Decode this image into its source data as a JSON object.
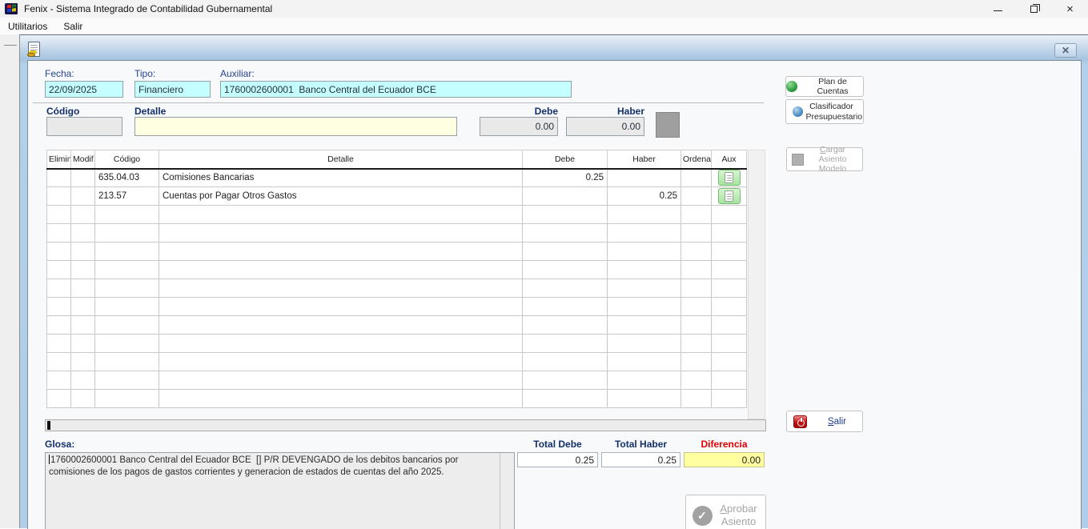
{
  "titlebar": {
    "title": "Fenix - Sistema Integrado de Contabilidad Gubernamental"
  },
  "menubar": {
    "items": [
      {
        "label": "Utilitarios"
      },
      {
        "label": "Salir"
      }
    ]
  },
  "header_form": {
    "fecha_label": "Fecha:",
    "fecha_value": "22/09/2025",
    "tipo_label": "Tipo:",
    "tipo_value": "Financiero",
    "auxiliar_label": "Auxiliar:",
    "auxiliar_value": "1760002600001  Banco Central del Ecuador BCE"
  },
  "entry_row": {
    "codigo_label": "Código",
    "detalle_label": "Detalle",
    "debe_label": "Debe",
    "haber_label": "Haber",
    "codigo_value": "",
    "detalle_value": "",
    "debe_value": "0.00",
    "haber_value": "0.00"
  },
  "grid": {
    "headers": [
      "Elimin",
      "Modif",
      "Código",
      "Detalle",
      "Debe",
      "Haber",
      "Ordenar",
      "Aux"
    ],
    "rows": [
      {
        "codigo": "635.04.03",
        "detalle": "Comisiones Bancarias",
        "debe": "0.25",
        "haber": ""
      },
      {
        "codigo": "213.57",
        "detalle": "Cuentas por Pagar Otros Gastos",
        "debe": "",
        "haber": "0.25"
      }
    ],
    "empty_row_count": 11
  },
  "glosa": {
    "label": "Glosa:",
    "text": "1760002600001 Banco Central del Ecuador BCE  [] P/R DEVENGADO de los debitos bancarios por comisiones de los pagos de gastos corrientes y generacion de estados de cuentas del año 2025."
  },
  "totals": {
    "debe_label": "Total Debe",
    "debe_value": "0.25",
    "haber_label": "Total Haber",
    "haber_value": "0.25",
    "diferencia_label": "Diferencia",
    "diferencia_value": "0.00"
  },
  "side_buttons": {
    "plan": "Plan de Cuentas",
    "clasificador": "Clasificador Presupuestario",
    "cargar": "Cargar Asiento Modelo",
    "salir": "Salir"
  },
  "approve_button": {
    "label": "Aprobar Asiento"
  },
  "colors": {
    "field_cyan": "#c4feff",
    "field_cream": "#ffffe1",
    "diferencia_bg": "#ffffa0",
    "label_navy": "#12306e",
    "diferencia_red": "#e60000",
    "aux_green": "#a7e3a0"
  }
}
